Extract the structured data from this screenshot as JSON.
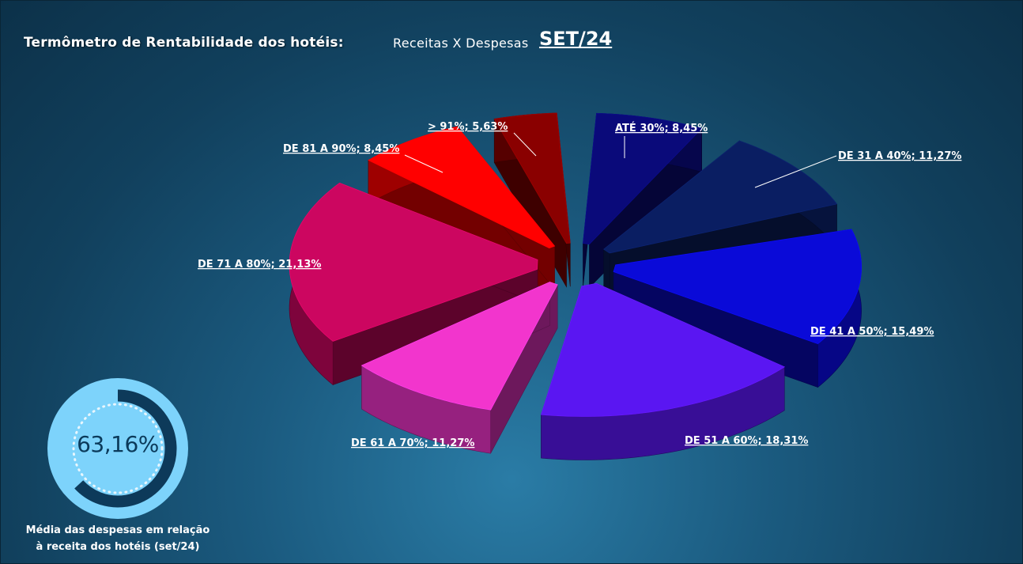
{
  "header": {
    "title": "Termômetro de Rentabilidade dos hotéis:",
    "subtitle": "Receitas X Despesas",
    "period": "SET/24"
  },
  "chart_data": {
    "type": "pie",
    "style": "3d-exploded",
    "slices": [
      {
        "label": "ATÉ 30%",
        "value": 8.45,
        "display": "ATÉ 30%; 8,45%",
        "color": "#0a0a7a"
      },
      {
        "label": "DE 31 A 40%",
        "value": 11.27,
        "display": "DE 31 A 40%; 11,27%",
        "color": "#0a1e62"
      },
      {
        "label": "DE 41 A 50%",
        "value": 15.49,
        "display": "DE 41 A 50%; 15,49%",
        "color": "#0a0ad8"
      },
      {
        "label": "DE 51 A 60%",
        "value": 18.31,
        "display": "DE 51 A 60%; 18,31%",
        "color": "#5a16f2"
      },
      {
        "label": "DE 61 A 70%",
        "value": 11.27,
        "display": "DE 61 A 70%; 11,27%",
        "color": "#f235cd"
      },
      {
        "label": "DE 71 A 80%",
        "value": 21.13,
        "display": "DE 71 A 80%; 21,13%",
        "color": "#cc0660"
      },
      {
        "label": "DE 81 A 90%",
        "value": 8.45,
        "display": "DE 81 A 90%; 8,45%",
        "color": "#ff0000"
      },
      {
        "label": "> 91%",
        "value": 5.63,
        "display": "> 91%; 5,63%",
        "color": "#8a0000"
      }
    ]
  },
  "gauge": {
    "value": 63.16,
    "display": "63,16%",
    "caption_line1": "Média das despesas em relação",
    "caption_line2": "à receita dos hotéis (set/24)",
    "ring_color": "#7dd3fb",
    "fill_color": "#0d3a5a"
  }
}
